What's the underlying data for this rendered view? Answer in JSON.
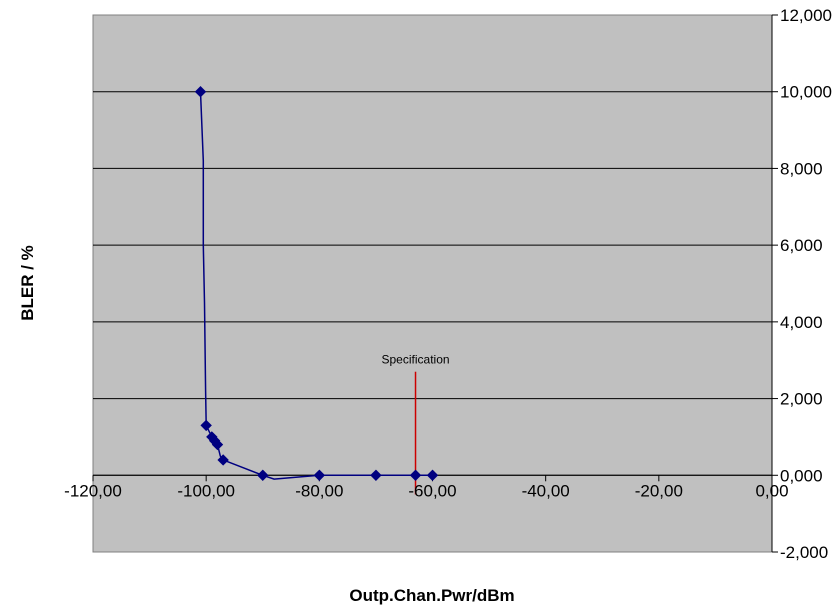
{
  "chart_data": {
    "type": "scatter",
    "title": "",
    "xlabel": "Outp.Chan.Pwr/dBm",
    "ylabel": "BLER / %",
    "xlim": [
      -120,
      0
    ],
    "ylim": [
      -2,
      12
    ],
    "x_ticks": [
      -120,
      -100,
      -80,
      -60,
      -40,
      -20,
      0
    ],
    "x_tick_labels": [
      "-120,00",
      "-100,00",
      "-80,00",
      "-60,00",
      "-40,00",
      "-20,00",
      "0,00"
    ],
    "y_ticks": [
      -2,
      0,
      2,
      4,
      6,
      8,
      10,
      12
    ],
    "y_tick_labels": [
      "-2,000",
      "0,000",
      "2,000",
      "4,000",
      "6,000",
      "8,000",
      "10,000",
      "12,000"
    ],
    "y_axis_side": "right",
    "x_axis_crosses_at_y": 0,
    "grid": "horizontal major",
    "plot_background": "#c0c0c0",
    "series": [
      {
        "color": "#000080",
        "marker": "diamond",
        "points": [
          {
            "x": -101,
            "y": 10.0
          },
          {
            "x": -100,
            "y": 1.3
          },
          {
            "x": -99,
            "y": 1.0
          },
          {
            "x": -98.5,
            "y": 0.9
          },
          {
            "x": -98,
            "y": 0.8
          },
          {
            "x": -97,
            "y": 0.4
          },
          {
            "x": -90,
            "y": 0.0
          },
          {
            "x": -80,
            "y": 0.0
          },
          {
            "x": -70,
            "y": 0.0
          },
          {
            "x": -63,
            "y": 0.0
          },
          {
            "x": -60,
            "y": 0.0
          }
        ],
        "curve": [
          {
            "x": -101,
            "y": 10.0
          },
          {
            "x": -100.5,
            "y": 8.2
          },
          {
            "x": -100.5,
            "y": 6.0
          },
          {
            "x": -100.3,
            "y": 4.5
          },
          {
            "x": -100.1,
            "y": 2.2
          },
          {
            "x": -100,
            "y": 1.3
          },
          {
            "x": -99,
            "y": 1.0
          },
          {
            "x": -98.5,
            "y": 0.9
          },
          {
            "x": -98,
            "y": 0.8
          },
          {
            "x": -97.5,
            "y": 0.5
          },
          {
            "x": -97,
            "y": 0.4
          },
          {
            "x": -90,
            "y": 0.0
          },
          {
            "x": -88,
            "y": -0.1
          },
          {
            "x": -80,
            "y": 0.0
          },
          {
            "x": -70,
            "y": 0.0
          },
          {
            "x": -63,
            "y": 0.0
          },
          {
            "x": -60,
            "y": 0.0
          }
        ]
      }
    ],
    "annotations": [
      {
        "text": "Specification",
        "x": -63,
        "y_from": -0.5,
        "y_to": 2.7,
        "color": "#cc0000"
      }
    ]
  }
}
